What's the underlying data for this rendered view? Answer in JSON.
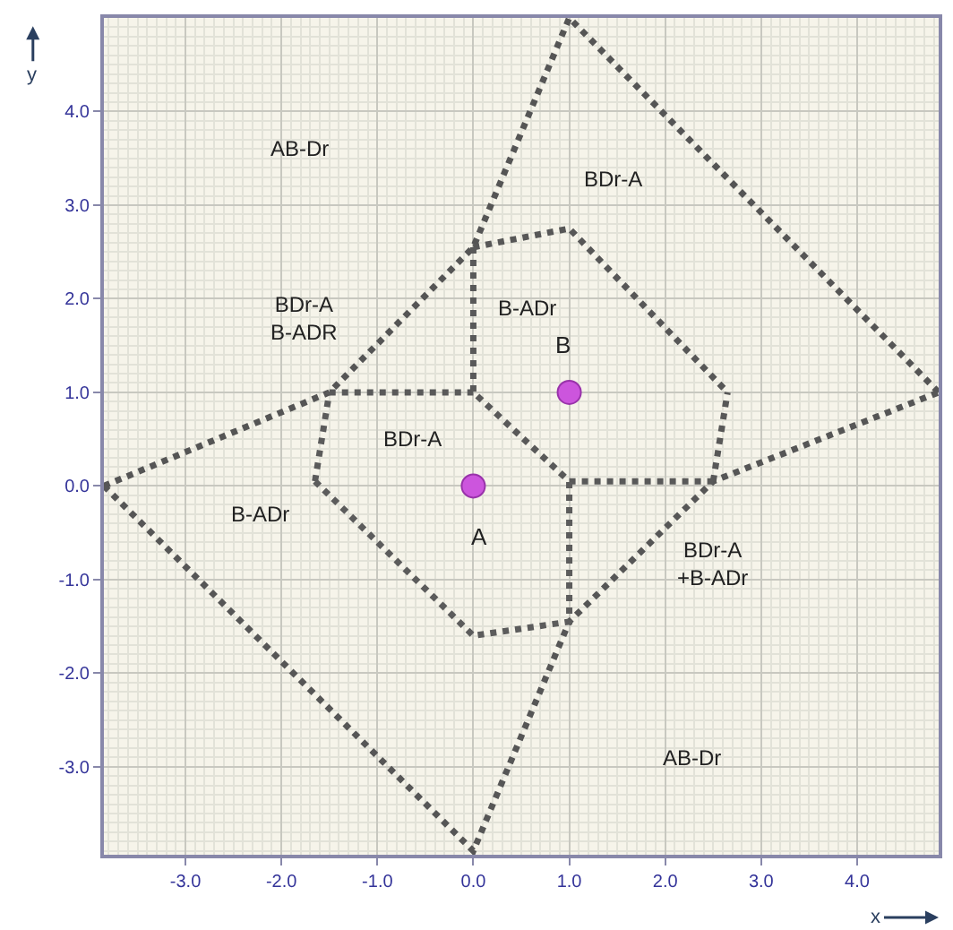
{
  "chart_data": {
    "type": "line",
    "xlabel": "x",
    "ylabel": "y",
    "xlim": [
      -3.85,
      4.85
    ],
    "ylim": [
      -3.94,
      5.0
    ],
    "xticks": [
      {
        "value": -3,
        "label": "-3.0"
      },
      {
        "value": -2,
        "label": "-2.0"
      },
      {
        "value": -1,
        "label": "-1.0"
      },
      {
        "value": 0,
        "label": "0.0"
      },
      {
        "value": 1,
        "label": "1.0"
      },
      {
        "value": 2,
        "label": "2.0"
      },
      {
        "value": 3,
        "label": "3.0"
      },
      {
        "value": 4,
        "label": "4.0"
      }
    ],
    "yticks": [
      {
        "value": -3,
        "label": "-3.0"
      },
      {
        "value": -2,
        "label": "-2.0"
      },
      {
        "value": -1,
        "label": "-1.0"
      },
      {
        "value": 0,
        "label": "0.0"
      },
      {
        "value": 1,
        "label": "1.0"
      },
      {
        "value": 2,
        "label": "2.0"
      },
      {
        "value": 3,
        "label": "3.0"
      },
      {
        "value": 4,
        "label": "4.0"
      }
    ],
    "grid": true,
    "line_style": "dotted",
    "series": [
      {
        "color": "#555555",
        "x": [
          -3.85,
          -1.5,
          0,
          1.0,
          4.85
        ],
        "values": [
          0,
          1.0,
          2.55,
          5.0,
          1.0
        ]
      },
      {
        "color": "#565656",
        "x": [
          -3.85,
          0,
          1.0,
          2.5,
          4.85
        ],
        "values": [
          0,
          -3.9,
          -1.45,
          0.05,
          1.0
        ]
      },
      {
        "color": "#575757",
        "x": [
          0,
          1.0,
          2.65
        ],
        "values": [
          2.55,
          2.75,
          1.0
        ]
      },
      {
        "color": "#585858",
        "x": [
          2.5,
          2.65
        ],
        "values": [
          0.05,
          1.0
        ]
      },
      {
        "color": "#595959",
        "x": [
          0,
          0,
          1.0,
          2.5
        ],
        "values": [
          2.55,
          1.0,
          0.05,
          0.05
        ]
      },
      {
        "color": "#5a5a5a",
        "x": [
          -1.5,
          0
        ],
        "values": [
          1.0,
          1.0
        ]
      },
      {
        "color": "#5b5b5b",
        "x": [
          -1.65,
          -1.5
        ],
        "values": [
          0.05,
          1.0
        ]
      },
      {
        "color": "#5c5c5c",
        "x": [
          -1.65,
          0,
          1.0,
          1.0
        ],
        "values": [
          0.05,
          -1.6,
          -1.45,
          0.05
        ]
      },
      {
        "type": "scatter",
        "color": "#cc55dd",
        "x": [
          0,
          1
        ],
        "values": [
          0,
          1
        ]
      }
    ],
    "annotations": [
      "AB-Dr",
      "BDr-A",
      "BDr-A\nB-ADR",
      "B-ADr",
      {
        "text": "B",
        "x": 1,
        "y": 1
      },
      "BDr-A",
      {
        "text": "A",
        "x": 0,
        "y": 0
      },
      "B-ADr",
      "BDr-A\n+B-ADr",
      "AB-Dr"
    ]
  }
}
